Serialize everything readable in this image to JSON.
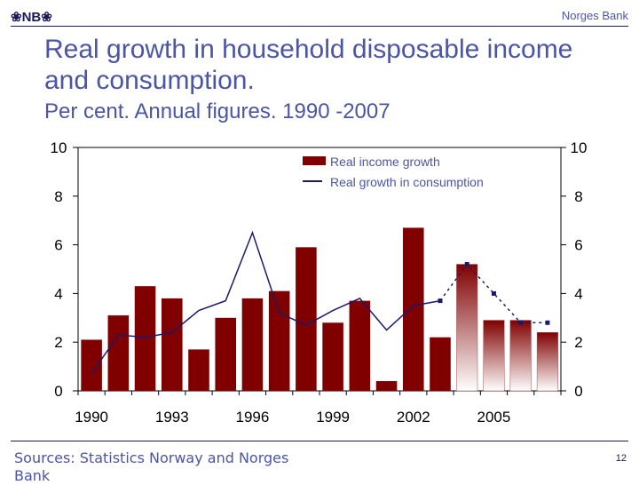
{
  "header": {
    "logo_text": "NB",
    "bank_name": "Norges Bank"
  },
  "title": "Real growth in household disposable income and consumption.",
  "subtitle": "Per cent. Annual figures. 1990 -2007",
  "colors": {
    "bar": "#800000",
    "bar_projection_top": "#800000",
    "bar_projection_bottom": "#ffffff",
    "line": "#1a1a6a",
    "text": "#4a55a8"
  },
  "chart_data": {
    "type": "bar",
    "categories": [
      "1990",
      "1991",
      "1992",
      "1993",
      "1994",
      "1995",
      "1996",
      "1997",
      "1998",
      "1999",
      "2000",
      "2001",
      "2002",
      "2003",
      "2004",
      "2005",
      "2006",
      "2007"
    ],
    "series": [
      {
        "name": "Real income growth",
        "type": "bar",
        "values": [
          2.1,
          3.1,
          4.3,
          3.8,
          1.7,
          3.0,
          3.8,
          4.1,
          5.9,
          2.8,
          3.7,
          0.4,
          6.7,
          2.2,
          5.2,
          2.9,
          2.9,
          2.4
        ]
      },
      {
        "name": "Real growth in consumption",
        "type": "line",
        "values": [
          0.7,
          2.3,
          2.2,
          2.4,
          3.3,
          3.7,
          6.5,
          3.2,
          2.7,
          3.3,
          3.8,
          2.5,
          3.5,
          3.7,
          5.2,
          4.0,
          2.8,
          2.8
        ]
      }
    ],
    "projection_from": "2004",
    "x_tick_labels": [
      "1990",
      "1993",
      "1996",
      "1999",
      "2002",
      "2005"
    ],
    "y_ticks": [
      0,
      2,
      4,
      6,
      8,
      10
    ],
    "ylim": [
      0,
      10
    ],
    "legend_position": "top-center"
  },
  "footer": {
    "sources": "Sources: Statistics Norway and Norges Bank",
    "page": "12"
  }
}
